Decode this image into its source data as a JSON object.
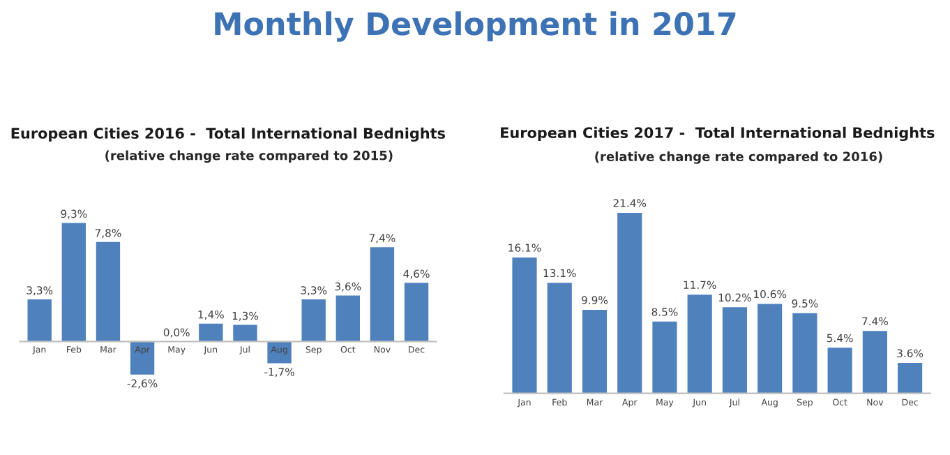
{
  "chart_data": [
    {
      "type": "bar",
      "title": "European Cities 2016 -  Total International Bednights",
      "subtitle": "(relative change rate compared to 2015)",
      "annotations": [
        "Monthly Development in 2017"
      ],
      "categories": [
        "Jan",
        "Feb",
        "Mar",
        "Apr",
        "May",
        "Jun",
        "Jul",
        "Aug",
        "Sep",
        "Oct",
        "Nov",
        "Dec"
      ],
      "values": [
        3.3,
        9.3,
        7.8,
        -2.6,
        0.0,
        1.4,
        1.3,
        -1.7,
        3.3,
        3.6,
        7.4,
        4.6
      ],
      "value_labels": [
        "3,3%",
        "9,3%",
        "7,8%",
        "-2,6%",
        "0,0%",
        "1,4%",
        "1,3%",
        "-1,7%",
        "3,3%",
        "3,6%",
        "7,4%",
        "4,6%"
      ],
      "color": "#4f81bd"
    },
    {
      "type": "bar",
      "title": "European Cities 2017 -  Total International Bednights",
      "subtitle": "(relative change rate compared to 2016)",
      "categories": [
        "Jan",
        "Feb",
        "Mar",
        "Apr",
        "May",
        "Jun",
        "Jul",
        "Aug",
        "Sep",
        "Oct",
        "Nov",
        "Dec"
      ],
      "values": [
        16.1,
        13.1,
        9.9,
        21.4,
        8.5,
        11.7,
        10.2,
        10.6,
        9.5,
        5.4,
        7.4,
        3.6
      ],
      "value_labels": [
        "16.1%",
        "13.1%",
        "9.9%",
        "21.4%",
        "8.5%",
        "11.7%",
        "10.2%",
        "10.6%",
        "9.5%",
        "5.4%",
        "7.4%",
        "3.6%"
      ],
      "color": "#4f81bd"
    }
  ]
}
